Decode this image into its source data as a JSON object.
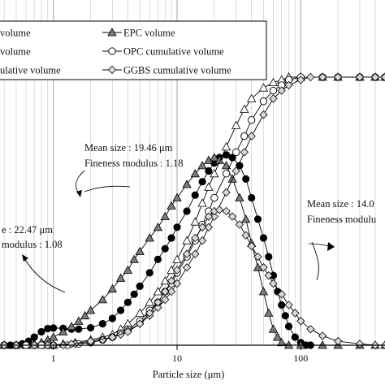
{
  "chart_data": {
    "type": "line",
    "xlabel": "Particle size (μm)",
    "xscale": "log",
    "xlim": [
      0.37,
      480
    ],
    "ylim": [
      0,
      100
    ],
    "grid": "vertical log gridlines",
    "xticks": [
      {
        "value": 1,
        "label": "1"
      },
      {
        "value": 10,
        "label": "10"
      },
      {
        "value": 100,
        "label": "100"
      }
    ],
    "legend": {
      "placement": "top-left",
      "entries": [
        {
          "label": "volume",
          "marker": "filled-circle"
        },
        {
          "label": "EPC volume",
          "marker": "filled-triangle"
        },
        {
          "label": "volume",
          "marker": "open-triangle"
        },
        {
          "label": "OPC cumulative volume",
          "marker": "open-circle"
        },
        {
          "label": "ulative volume",
          "marker": "open-diamond"
        },
        {
          "label": "GGBS cumulative volume",
          "marker": "open-diamond"
        }
      ]
    },
    "annotations": [
      {
        "lines": [
          "Mean size : 19.46 μm",
          "Fineness modulus : 1.18"
        ]
      },
      {
        "lines": [
          "e : 22.47 μm",
          "modulus : 1.08"
        ]
      },
      {
        "lines": [
          "Mean size : 14.0",
          "Fineness modulu"
        ]
      }
    ],
    "series": [
      {
        "marker": "filled-circle",
        "points": [
          [
            0.4,
            0
          ],
          [
            0.45,
            0
          ],
          [
            0.5,
            0
          ],
          [
            0.56,
            0.5
          ],
          [
            0.63,
            1.5
          ],
          [
            0.7,
            3
          ],
          [
            0.8,
            5
          ],
          [
            0.9,
            6.2
          ],
          [
            1,
            6.4
          ],
          [
            1.2,
            6.3
          ],
          [
            1.4,
            6
          ],
          [
            1.6,
            6
          ],
          [
            2,
            6.5
          ],
          [
            2.5,
            8
          ],
          [
            3,
            10
          ],
          [
            3.5,
            13
          ],
          [
            4,
            16
          ],
          [
            4.5,
            19
          ],
          [
            5,
            22
          ],
          [
            6,
            27
          ],
          [
            7,
            32
          ],
          [
            8,
            36
          ],
          [
            9,
            40
          ],
          [
            10,
            44
          ],
          [
            12,
            50
          ],
          [
            14,
            56
          ],
          [
            16,
            61
          ],
          [
            18,
            65
          ],
          [
            20,
            68
          ],
          [
            22,
            70
          ],
          [
            25,
            71
          ],
          [
            28,
            70
          ],
          [
            32,
            67
          ],
          [
            36,
            62
          ],
          [
            40,
            55
          ],
          [
            45,
            47
          ],
          [
            50,
            40
          ],
          [
            55,
            33
          ],
          [
            60,
            26
          ],
          [
            65,
            20
          ],
          [
            70,
            15
          ],
          [
            75,
            11
          ],
          [
            80,
            7
          ],
          [
            90,
            3
          ],
          [
            100,
            1
          ],
          [
            110,
            0
          ],
          [
            120,
            0
          ]
        ]
      },
      {
        "marker": "filled-triangle",
        "points": [
          [
            0.4,
            0
          ],
          [
            0.5,
            0
          ],
          [
            0.6,
            0
          ],
          [
            0.7,
            0.5
          ],
          [
            0.8,
            1
          ],
          [
            0.9,
            2
          ],
          [
            1,
            3
          ],
          [
            1.2,
            5
          ],
          [
            1.4,
            7
          ],
          [
            1.6,
            9
          ],
          [
            1.8,
            11
          ],
          [
            2,
            13
          ],
          [
            2.5,
            17
          ],
          [
            3,
            21
          ],
          [
            3.5,
            25
          ],
          [
            4,
            28
          ],
          [
            4.5,
            32
          ],
          [
            5,
            35
          ],
          [
            6,
            40
          ],
          [
            7,
            44
          ],
          [
            8,
            48
          ],
          [
            9,
            52
          ],
          [
            10,
            55
          ],
          [
            12,
            60
          ],
          [
            14,
            64
          ],
          [
            16,
            67
          ],
          [
            18,
            69
          ],
          [
            20,
            70
          ],
          [
            22,
            69
          ],
          [
            25,
            67
          ],
          [
            28,
            62
          ],
          [
            32,
            55
          ],
          [
            36,
            47
          ],
          [
            40,
            38
          ],
          [
            45,
            29
          ],
          [
            50,
            20
          ],
          [
            55,
            12
          ],
          [
            60,
            6
          ],
          [
            65,
            3
          ],
          [
            70,
            1
          ],
          [
            80,
            0
          ],
          [
            100,
            0
          ],
          [
            150,
            0
          ],
          [
            200,
            0
          ],
          [
            300,
            0
          ],
          [
            400,
            0
          ],
          [
            480,
            0
          ]
        ]
      },
      {
        "marker": "open-triangle",
        "points": [
          [
            0.4,
            0
          ],
          [
            0.5,
            0
          ],
          [
            0.7,
            0
          ],
          [
            0.9,
            0
          ],
          [
            1,
            0
          ],
          [
            1.2,
            0.5
          ],
          [
            1.5,
            1
          ],
          [
            2,
            2
          ],
          [
            2.5,
            3
          ],
          [
            3,
            4
          ],
          [
            3.5,
            6
          ],
          [
            4,
            8
          ],
          [
            5,
            12
          ],
          [
            6,
            16
          ],
          [
            7,
            20
          ],
          [
            8,
            24
          ],
          [
            9,
            28
          ],
          [
            10,
            32
          ],
          [
            12,
            39
          ],
          [
            14,
            46
          ],
          [
            16,
            53
          ],
          [
            18,
            59
          ],
          [
            20,
            64
          ],
          [
            25,
            74
          ],
          [
            30,
            82
          ],
          [
            35,
            88
          ],
          [
            40,
            92
          ],
          [
            50,
            96
          ],
          [
            60,
            98
          ],
          [
            70,
            99
          ],
          [
            80,
            100
          ],
          [
            100,
            100
          ],
          [
            150,
            100
          ],
          [
            200,
            100
          ],
          [
            300,
            100
          ],
          [
            400,
            100
          ],
          [
            480,
            100
          ]
        ]
      },
      {
        "marker": "open-circle",
        "points": [
          [
            0.4,
            0
          ],
          [
            0.5,
            0
          ],
          [
            0.6,
            0
          ],
          [
            0.8,
            0
          ],
          [
            1,
            0
          ],
          [
            1.3,
            0
          ],
          [
            1.6,
            0.5
          ],
          [
            2,
            1
          ],
          [
            2.5,
            2
          ],
          [
            3,
            3
          ],
          [
            3.5,
            4.5
          ],
          [
            4,
            6
          ],
          [
            5,
            9
          ],
          [
            6,
            13
          ],
          [
            7,
            16
          ],
          [
            8,
            20
          ],
          [
            9,
            23
          ],
          [
            10,
            27
          ],
          [
            12,
            33
          ],
          [
            14,
            39
          ],
          [
            16,
            45
          ],
          [
            18,
            50
          ],
          [
            20,
            55
          ],
          [
            25,
            64
          ],
          [
            30,
            72
          ],
          [
            35,
            78
          ],
          [
            40,
            84
          ],
          [
            50,
            91
          ],
          [
            60,
            95
          ],
          [
            70,
            97
          ],
          [
            80,
            99
          ],
          [
            100,
            100
          ],
          [
            150,
            100
          ],
          [
            200,
            100
          ],
          [
            300,
            100
          ],
          [
            400,
            100
          ],
          [
            480,
            100
          ]
        ]
      },
      {
        "marker": "open-diamond",
        "points": [
          [
            0.4,
            0
          ],
          [
            0.5,
            0
          ],
          [
            0.7,
            0
          ],
          [
            0.9,
            0
          ],
          [
            1.2,
            0
          ],
          [
            1.5,
            0.5
          ],
          [
            2,
            1
          ],
          [
            2.5,
            2
          ],
          [
            3,
            3
          ],
          [
            3.5,
            4
          ],
          [
            4,
            5.5
          ],
          [
            5,
            8
          ],
          [
            6,
            11
          ],
          [
            7,
            14
          ],
          [
            8,
            17
          ],
          [
            9,
            20
          ],
          [
            10,
            23
          ],
          [
            12,
            29
          ],
          [
            14,
            34
          ],
          [
            16,
            39
          ],
          [
            18,
            44
          ],
          [
            20,
            48
          ],
          [
            25,
            57
          ],
          [
            30,
            65
          ],
          [
            35,
            72
          ],
          [
            40,
            78
          ],
          [
            50,
            86
          ],
          [
            60,
            92
          ],
          [
            70,
            95
          ],
          [
            80,
            97
          ],
          [
            100,
            99
          ],
          [
            120,
            100
          ],
          [
            150,
            100
          ],
          [
            200,
            100
          ],
          [
            300,
            100
          ],
          [
            400,
            100
          ],
          [
            480,
            100
          ]
        ]
      },
      {
        "marker": "open-diamond",
        "points": [
          [
            0.4,
            0
          ],
          [
            0.5,
            0
          ],
          [
            0.7,
            0
          ],
          [
            1,
            0
          ],
          [
            1.4,
            0.5
          ],
          [
            2,
            1.5
          ],
          [
            3,
            3
          ],
          [
            4,
            5
          ],
          [
            5,
            8
          ],
          [
            6,
            12
          ],
          [
            7,
            16
          ],
          [
            8,
            20
          ],
          [
            9,
            24
          ],
          [
            10,
            28
          ],
          [
            12,
            34
          ],
          [
            14,
            40
          ],
          [
            16,
            44
          ],
          [
            18,
            48
          ],
          [
            20,
            50
          ],
          [
            22,
            50.5
          ],
          [
            25,
            50
          ],
          [
            28,
            48
          ],
          [
            32,
            45
          ],
          [
            36,
            41
          ],
          [
            40,
            37
          ],
          [
            45,
            33
          ],
          [
            50,
            29
          ],
          [
            55,
            26
          ],
          [
            60,
            23
          ],
          [
            70,
            19
          ],
          [
            80,
            15
          ],
          [
            90,
            12
          ],
          [
            100,
            9
          ],
          [
            120,
            6
          ],
          [
            150,
            3.5
          ],
          [
            200,
            1.5
          ],
          [
            300,
            0.5
          ],
          [
            400,
            0
          ],
          [
            480,
            0
          ]
        ]
      }
    ]
  }
}
